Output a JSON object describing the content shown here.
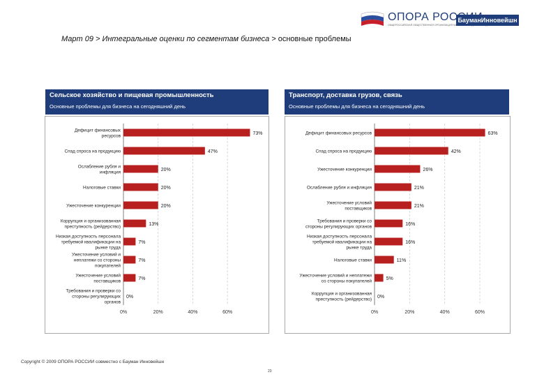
{
  "header": {
    "logo_text": "ОПОРА РОССИИ",
    "logo_subtitle": "ОБЩЕРОССИЙСКАЯ ОБЩЕСТВЕННАЯ ОРГАНИЗАЦИЯ МАЛОГО И СРЕДНЕГО ПРЕДПРИНИМАТЕЛЬСТВА",
    "partner_label": "БауманИнновейшн",
    "title_lead": "Март 09 > Интегральные оценки по сегментам бизнеса >",
    "title_rest": " основные проблемы"
  },
  "panels": [
    {
      "title": "Сельское хозяйство и пищевая промышленность",
      "subtitle": "Основные проблемы для бизнеса на сегодняшний день"
    },
    {
      "title": "Транспорт, доставка грузов, связь",
      "subtitle": "Основные проблемы для бизнеса на сегодняшний день"
    }
  ],
  "colors": {
    "bar": "#b81f1f",
    "header_bg": "#1f3d7a"
  },
  "chart_data": [
    {
      "type": "bar",
      "orientation": "horizontal",
      "title": "Сельское хозяйство и пищевая промышленность",
      "categories": [
        [
          "Дефицит финансовых",
          "ресурсов"
        ],
        [
          "Спад спроса на продукцию"
        ],
        [
          "Ослабление рубля и",
          "инфляция"
        ],
        [
          "Налоговые ставки"
        ],
        [
          "Ужесточение конкуренции"
        ],
        [
          "Коррупция и организованная",
          "преступность (рейдерство)"
        ],
        [
          "Низкая доступность персонала",
          "требуемой квалификации на",
          "рынке труда"
        ],
        [
          "Ужесточение условий и",
          "неплатежи со стороны",
          "покупателей"
        ],
        [
          "Ужесточение условий",
          "поставщиков"
        ],
        [
          "Требования и проверки со",
          "стороны регулирующих",
          "органов"
        ]
      ],
      "values": [
        73,
        47,
        20,
        20,
        20,
        13,
        7,
        7,
        7,
        0
      ],
      "value_labels": [
        "73%",
        "47%",
        "20%",
        "20%",
        "20%",
        "13%",
        "7%",
        "7%",
        "7%",
        "0%"
      ],
      "xlim": [
        0,
        70
      ],
      "xticks": [
        0,
        20,
        40,
        60
      ],
      "xtick_labels": [
        "0%",
        "20%",
        "40%",
        "60%"
      ]
    },
    {
      "type": "bar",
      "orientation": "horizontal",
      "title": "Транспорт, доставка грузов, связь",
      "categories": [
        [
          "Дефицит финансовых ресурсов"
        ],
        [
          "Спад спроса на продукцию"
        ],
        [
          "Ужесточение конкуренции"
        ],
        [
          "Ослабление рубля и инфляция"
        ],
        [
          "Ужесточение условий",
          "поставщиков"
        ],
        [
          "Требования и проверки со",
          "стороны регулирующих органов"
        ],
        [
          "Низкая доступность персонала",
          "требуемой квалификации на",
          "рынке труда"
        ],
        [
          "Налоговые ставки"
        ],
        [
          "Ужесточение условий и неплатежи",
          "со стороны покупателей"
        ],
        [
          "Коррупция и организованная",
          "преступность (рейдерство)"
        ]
      ],
      "values": [
        63,
        42,
        26,
        21,
        21,
        16,
        16,
        11,
        5,
        0
      ],
      "value_labels": [
        "63%",
        "42%",
        "26%",
        "21%",
        "21%",
        "16%",
        "16%",
        "11%",
        "5%",
        "0%"
      ],
      "xlim": [
        0,
        60
      ],
      "xticks": [
        0,
        20,
        40,
        60
      ],
      "xtick_labels": [
        "0%",
        "20%",
        "40%",
        "60%"
      ]
    }
  ],
  "footer": {
    "copyright": "Copyright © 2009 ОПОРА РОССИИ совместно с Бауман Инновейшн",
    "page_number": "23"
  }
}
